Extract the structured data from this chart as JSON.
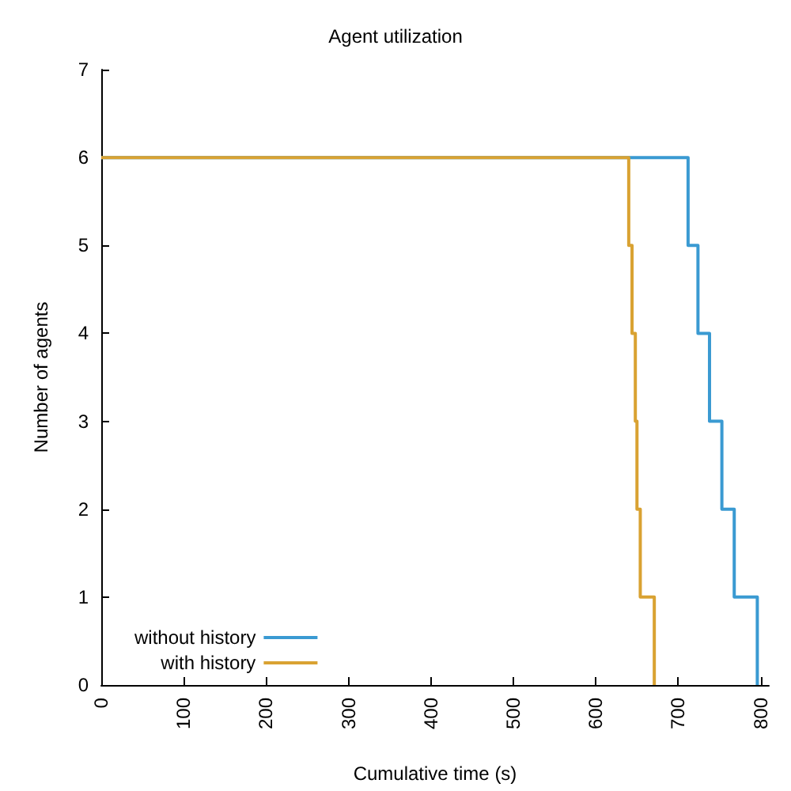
{
  "chart_data": {
    "type": "step",
    "title": "Agent utilization",
    "xlabel": "Cumulative time (s)",
    "ylabel": "Number of agents",
    "xlim": [
      0,
      810
    ],
    "xticks": [
      0,
      100,
      200,
      300,
      400,
      500,
      600,
      700,
      800
    ],
    "ylim": [
      0,
      7
    ],
    "yticks": [
      0,
      1,
      2,
      3,
      4,
      5,
      6,
      7
    ],
    "grid": false,
    "legend": "bottom left",
    "marker": "none",
    "line_style": "solid",
    "series": [
      {
        "name": "without history",
        "color": "#3a9ad2",
        "x": [
          0,
          712,
          724,
          738,
          753,
          768,
          796
        ],
        "values": [
          6,
          5,
          4,
          3,
          2,
          1,
          0
        ]
      },
      {
        "name": "with history",
        "color": "#d9a232",
        "x": [
          0,
          640,
          644,
          648,
          650,
          654,
          671
        ],
        "values": [
          6,
          5,
          4,
          3,
          2,
          1,
          0
        ]
      }
    ]
  }
}
